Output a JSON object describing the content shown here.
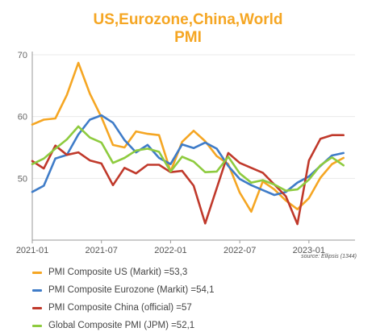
{
  "title_line1": "US,Eurozone,China,World",
  "title_line2": "PMI",
  "source": "source: Ellipsis (1344)",
  "chart_data": {
    "type": "line",
    "x_ticks": [
      "2021-01",
      "2021-07",
      "2022-01",
      "2022-07",
      "2023-01"
    ],
    "y_ticks": [
      50,
      60,
      70
    ],
    "ylim": [
      40,
      70
    ],
    "xlim": [
      "2021-01",
      "2023-05"
    ],
    "grid": "horizontal",
    "months": [
      "2021-01",
      "2021-02",
      "2021-03",
      "2021-04",
      "2021-05",
      "2021-06",
      "2021-07",
      "2021-08",
      "2021-09",
      "2021-10",
      "2021-11",
      "2021-12",
      "2022-01",
      "2022-02",
      "2022-03",
      "2022-04",
      "2022-05",
      "2022-06",
      "2022-07",
      "2022-08",
      "2022-09",
      "2022-10",
      "2022-11",
      "2022-12",
      "2023-01",
      "2023-02",
      "2023-03",
      "2023-04"
    ],
    "series": [
      {
        "name": "PMI Composite US (Markit) =53,3",
        "color": "#f5a623",
        "values": [
          58.7,
          59.5,
          59.7,
          63.5,
          68.7,
          63.7,
          59.9,
          55.4,
          55.0,
          57.6,
          57.2,
          57.0,
          51.1,
          55.9,
          57.7,
          56.0,
          53.6,
          52.3,
          47.7,
          44.6,
          49.5,
          48.2,
          46.4,
          45.0,
          46.8,
          50.1,
          52.3,
          53.3
        ]
      },
      {
        "name": "PMI Composite Eurozone (Markit) =54,1",
        "color": "#3f7cc8",
        "values": [
          47.8,
          48.8,
          53.2,
          53.8,
          57.1,
          59.5,
          60.2,
          59.0,
          56.2,
          54.2,
          55.4,
          53.3,
          52.3,
          55.5,
          54.9,
          55.8,
          54.8,
          52.0,
          49.9,
          48.9,
          48.1,
          47.3,
          47.8,
          49.3,
          50.3,
          52.0,
          53.7,
          54.1
        ]
      },
      {
        "name": "PMI Composite China (official) =57",
        "color": "#c0392b",
        "values": [
          52.8,
          51.6,
          55.3,
          53.8,
          54.2,
          52.9,
          52.4,
          48.9,
          51.7,
          50.8,
          52.2,
          52.2,
          51.0,
          51.2,
          48.8,
          42.7,
          48.4,
          54.1,
          52.5,
          51.7,
          50.9,
          49.0,
          47.1,
          42.6,
          52.9,
          56.4,
          57.0,
          57.0
        ]
      },
      {
        "name": "Global Composite PMI (JPM) =52,1",
        "color": "#8ecb3f",
        "values": [
          52.3,
          53.2,
          54.8,
          56.3,
          58.4,
          56.6,
          55.8,
          52.5,
          53.3,
          54.5,
          54.8,
          54.3,
          51.1,
          53.5,
          52.7,
          51.0,
          51.1,
          53.5,
          50.8,
          49.3,
          49.7,
          49.0,
          48.0,
          48.2,
          49.8,
          52.1,
          53.4,
          52.1
        ]
      }
    ]
  }
}
